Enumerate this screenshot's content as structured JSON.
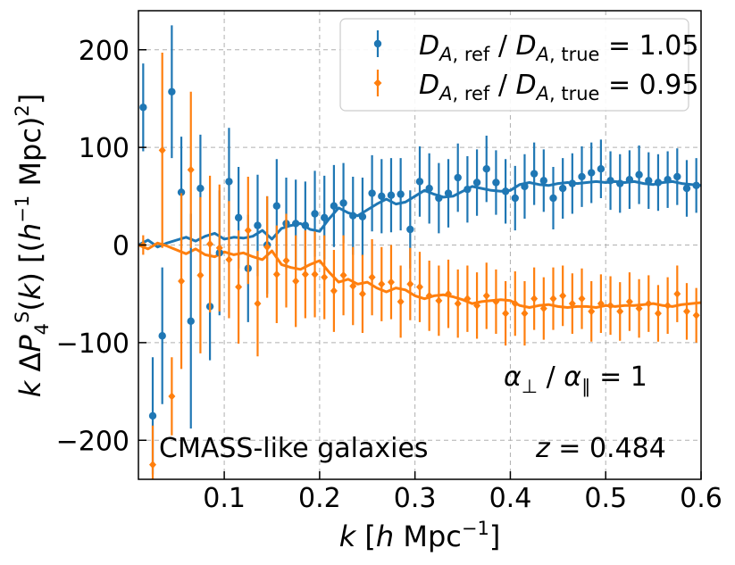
{
  "chart_data": {
    "type": "scatter",
    "xlabel": "k [h Mpc^-1]",
    "ylabel": "k ΔP4S(k) [(h^-1 Mpc)^2]",
    "xlim": [
      0.01,
      0.6
    ],
    "ylim": [
      -240,
      240
    ],
    "xticks": [
      0.1,
      0.2,
      0.3,
      0.4,
      0.5,
      0.6
    ],
    "yticks": [
      -200,
      -100,
      0,
      100,
      200
    ],
    "grid": true,
    "legend_position": "top-right",
    "series": [
      {
        "name": "D_A,ref / D_A,true = 1.05",
        "color": "#1f77b4",
        "marker": "circle",
        "points": [
          {
            "x": 0.015,
            "y": 141,
            "err": 45
          },
          {
            "x": 0.025,
            "y": -175,
            "err": 60
          },
          {
            "x": 0.035,
            "y": -93,
            "err": 70
          },
          {
            "x": 0.045,
            "y": 157,
            "err": 68
          },
          {
            "x": 0.055,
            "y": 54,
            "err": 57
          },
          {
            "x": 0.065,
            "y": -78,
            "err": 110
          },
          {
            "x": 0.075,
            "y": 58,
            "err": 55
          },
          {
            "x": 0.085,
            "y": -63,
            "err": 55
          },
          {
            "x": 0.095,
            "y": -8,
            "err": 64
          },
          {
            "x": 0.105,
            "y": 65,
            "err": 55
          },
          {
            "x": 0.115,
            "y": 28,
            "err": 52
          },
          {
            "x": 0.125,
            "y": -24,
            "err": 55
          },
          {
            "x": 0.135,
            "y": 20,
            "err": 52
          },
          {
            "x": 0.145,
            "y": 0,
            "err": 50
          },
          {
            "x": 0.155,
            "y": 40,
            "err": 48
          },
          {
            "x": 0.165,
            "y": 22,
            "err": 47
          },
          {
            "x": 0.175,
            "y": 22,
            "err": 45
          },
          {
            "x": 0.185,
            "y": 20,
            "err": 45
          },
          {
            "x": 0.195,
            "y": 32,
            "err": 44
          },
          {
            "x": 0.205,
            "y": 28,
            "err": 43
          },
          {
            "x": 0.215,
            "y": 40,
            "err": 42
          },
          {
            "x": 0.225,
            "y": 43,
            "err": 41
          },
          {
            "x": 0.235,
            "y": 30,
            "err": 40
          },
          {
            "x": 0.245,
            "y": 29,
            "err": 40
          },
          {
            "x": 0.255,
            "y": 53,
            "err": 39
          },
          {
            "x": 0.265,
            "y": 50,
            "err": 38
          },
          {
            "x": 0.275,
            "y": 51,
            "err": 38
          },
          {
            "x": 0.285,
            "y": 52,
            "err": 37
          },
          {
            "x": 0.295,
            "y": 16,
            "err": 40
          },
          {
            "x": 0.305,
            "y": 65,
            "err": 36
          },
          {
            "x": 0.315,
            "y": 58,
            "err": 36
          },
          {
            "x": 0.325,
            "y": 48,
            "err": 36
          },
          {
            "x": 0.335,
            "y": 53,
            "err": 35
          },
          {
            "x": 0.345,
            "y": 69,
            "err": 35
          },
          {
            "x": 0.355,
            "y": 57,
            "err": 34
          },
          {
            "x": 0.365,
            "y": 64,
            "err": 34
          },
          {
            "x": 0.375,
            "y": 78,
            "err": 34
          },
          {
            "x": 0.385,
            "y": 64,
            "err": 33
          },
          {
            "x": 0.395,
            "y": 55,
            "err": 33
          },
          {
            "x": 0.405,
            "y": 48,
            "err": 33
          },
          {
            "x": 0.415,
            "y": 60,
            "err": 33
          },
          {
            "x": 0.425,
            "y": 73,
            "err": 32
          },
          {
            "x": 0.435,
            "y": 66,
            "err": 32
          },
          {
            "x": 0.445,
            "y": 48,
            "err": 32
          },
          {
            "x": 0.455,
            "y": 58,
            "err": 31
          },
          {
            "x": 0.465,
            "y": 63,
            "err": 31
          },
          {
            "x": 0.475,
            "y": 70,
            "err": 31
          },
          {
            "x": 0.485,
            "y": 74,
            "err": 31
          },
          {
            "x": 0.495,
            "y": 78,
            "err": 30
          },
          {
            "x": 0.505,
            "y": 66,
            "err": 30
          },
          {
            "x": 0.515,
            "y": 63,
            "err": 30
          },
          {
            "x": 0.525,
            "y": 67,
            "err": 30
          },
          {
            "x": 0.535,
            "y": 72,
            "err": 30
          },
          {
            "x": 0.545,
            "y": 66,
            "err": 29
          },
          {
            "x": 0.555,
            "y": 64,
            "err": 29
          },
          {
            "x": 0.565,
            "y": 67,
            "err": 29
          },
          {
            "x": 0.575,
            "y": 70,
            "err": 29
          },
          {
            "x": 0.585,
            "y": 58,
            "err": 29
          },
          {
            "x": 0.595,
            "y": 61,
            "err": 28
          }
        ],
        "model_curve": {
          "x": [
            0.01,
            0.02,
            0.03,
            0.04,
            0.05,
            0.06,
            0.07,
            0.08,
            0.09,
            0.1,
            0.11,
            0.12,
            0.13,
            0.14,
            0.15,
            0.16,
            0.17,
            0.18,
            0.19,
            0.2,
            0.21,
            0.22,
            0.23,
            0.24,
            0.25,
            0.26,
            0.27,
            0.28,
            0.29,
            0.3,
            0.31,
            0.32,
            0.33,
            0.34,
            0.35,
            0.36,
            0.37,
            0.38,
            0.39,
            0.4,
            0.41,
            0.42,
            0.43,
            0.44,
            0.45,
            0.46,
            0.47,
            0.48,
            0.49,
            0.5,
            0.51,
            0.52,
            0.53,
            0.54,
            0.55,
            0.56,
            0.57,
            0.58,
            0.59,
            0.6
          ],
          "y": [
            0,
            5,
            -2,
            2,
            5,
            8,
            4,
            9,
            12,
            6,
            8,
            7,
            9,
            15,
            6,
            17,
            20,
            22,
            16,
            14,
            27,
            38,
            33,
            30,
            36,
            42,
            47,
            42,
            44,
            50,
            56,
            52,
            49,
            50,
            55,
            60,
            58,
            56,
            55,
            56,
            62,
            64,
            62,
            61,
            63,
            64,
            63,
            64,
            65,
            64,
            65,
            64,
            65,
            63,
            62,
            64,
            65,
            63,
            62,
            61
          ]
        }
      },
      {
        "name": "D_A,ref / D_A,true = 0.95",
        "color": "#ff7f0e",
        "marker": "diamond",
        "points": [
          {
            "x": 0.015,
            "y": 0,
            "err": 10
          },
          {
            "x": 0.025,
            "y": -225,
            "err": 40
          },
          {
            "x": 0.035,
            "y": 97,
            "err": 100
          },
          {
            "x": 0.045,
            "y": -155,
            "err": 40
          },
          {
            "x": 0.055,
            "y": -37,
            "err": 90
          },
          {
            "x": 0.065,
            "y": 77,
            "err": 80
          },
          {
            "x": 0.075,
            "y": -31,
            "err": 80
          },
          {
            "x": 0.085,
            "y": 1,
            "err": 70
          },
          {
            "x": 0.095,
            "y": -3,
            "err": 65
          },
          {
            "x": 0.105,
            "y": -15,
            "err": 60
          },
          {
            "x": 0.115,
            "y": -43,
            "err": 58
          },
          {
            "x": 0.125,
            "y": 15,
            "err": 55
          },
          {
            "x": 0.135,
            "y": -60,
            "err": 54
          },
          {
            "x": 0.145,
            "y": -2,
            "err": 52
          },
          {
            "x": 0.155,
            "y": -30,
            "err": 50
          },
          {
            "x": 0.165,
            "y": -16,
            "err": 48
          },
          {
            "x": 0.175,
            "y": -37,
            "err": 47
          },
          {
            "x": 0.185,
            "y": -30,
            "err": 45
          },
          {
            "x": 0.195,
            "y": -30,
            "err": 44
          },
          {
            "x": 0.205,
            "y": -33,
            "err": 43
          },
          {
            "x": 0.215,
            "y": -47,
            "err": 42
          },
          {
            "x": 0.225,
            "y": -31,
            "err": 41
          },
          {
            "x": 0.235,
            "y": -42,
            "err": 40
          },
          {
            "x": 0.245,
            "y": -50,
            "err": 40
          },
          {
            "x": 0.255,
            "y": -33,
            "err": 39
          },
          {
            "x": 0.265,
            "y": -40,
            "err": 38
          },
          {
            "x": 0.275,
            "y": -38,
            "err": 38
          },
          {
            "x": 0.285,
            "y": -58,
            "err": 37
          },
          {
            "x": 0.295,
            "y": -40,
            "err": 37
          },
          {
            "x": 0.305,
            "y": -43,
            "err": 36
          },
          {
            "x": 0.315,
            "y": -52,
            "err": 36
          },
          {
            "x": 0.325,
            "y": -57,
            "err": 36
          },
          {
            "x": 0.335,
            "y": -50,
            "err": 35
          },
          {
            "x": 0.345,
            "y": -60,
            "err": 35
          },
          {
            "x": 0.355,
            "y": -55,
            "err": 34
          },
          {
            "x": 0.365,
            "y": -62,
            "err": 34
          },
          {
            "x": 0.375,
            "y": -52,
            "err": 34
          },
          {
            "x": 0.385,
            "y": -58,
            "err": 33
          },
          {
            "x": 0.395,
            "y": -70,
            "err": 33
          },
          {
            "x": 0.405,
            "y": -60,
            "err": 33
          },
          {
            "x": 0.415,
            "y": -70,
            "err": 33
          },
          {
            "x": 0.425,
            "y": -55,
            "err": 32
          },
          {
            "x": 0.435,
            "y": -65,
            "err": 32
          },
          {
            "x": 0.445,
            "y": -55,
            "err": 32
          },
          {
            "x": 0.455,
            "y": -52,
            "err": 31
          },
          {
            "x": 0.465,
            "y": -60,
            "err": 31
          },
          {
            "x": 0.475,
            "y": -55,
            "err": 31
          },
          {
            "x": 0.485,
            "y": -68,
            "err": 31
          },
          {
            "x": 0.495,
            "y": -60,
            "err": 30
          },
          {
            "x": 0.505,
            "y": -62,
            "err": 30
          },
          {
            "x": 0.515,
            "y": -68,
            "err": 30
          },
          {
            "x": 0.525,
            "y": -58,
            "err": 30
          },
          {
            "x": 0.535,
            "y": -65,
            "err": 30
          },
          {
            "x": 0.545,
            "y": -60,
            "err": 29
          },
          {
            "x": 0.555,
            "y": -70,
            "err": 29
          },
          {
            "x": 0.565,
            "y": -62,
            "err": 29
          },
          {
            "x": 0.575,
            "y": -50,
            "err": 29
          },
          {
            "x": 0.585,
            "y": -68,
            "err": 29
          },
          {
            "x": 0.595,
            "y": -72,
            "err": 28
          }
        ],
        "model_curve": {
          "x": [
            0.01,
            0.02,
            0.03,
            0.04,
            0.05,
            0.06,
            0.07,
            0.08,
            0.09,
            0.1,
            0.11,
            0.12,
            0.13,
            0.14,
            0.15,
            0.16,
            0.17,
            0.18,
            0.19,
            0.2,
            0.21,
            0.22,
            0.23,
            0.24,
            0.25,
            0.26,
            0.27,
            0.28,
            0.29,
            0.3,
            0.31,
            0.32,
            0.33,
            0.34,
            0.35,
            0.36,
            0.37,
            0.38,
            0.39,
            0.4,
            0.41,
            0.42,
            0.43,
            0.44,
            0.45,
            0.46,
            0.47,
            0.48,
            0.49,
            0.5,
            0.51,
            0.52,
            0.53,
            0.54,
            0.55,
            0.56,
            0.57,
            0.58,
            0.59,
            0.6
          ],
          "y": [
            0,
            -4,
            2,
            -1,
            -5,
            -9,
            -4,
            -10,
            -12,
            -7,
            -10,
            -8,
            -12,
            -15,
            -6,
            -20,
            -23,
            -25,
            -20,
            -16,
            -28,
            -38,
            -35,
            -40,
            -38,
            -44,
            -48,
            -44,
            -46,
            -52,
            -55,
            -52,
            -51,
            -53,
            -56,
            -60,
            -58,
            -57,
            -56,
            -57,
            -62,
            -64,
            -62,
            -61,
            -63,
            -64,
            -63,
            -63,
            -64,
            -62,
            -63,
            -62,
            -62,
            -61,
            -60,
            -62,
            -63,
            -61,
            -60,
            -59
          ]
        }
      }
    ],
    "annotations": {
      "alpha_ratio": "α⊥ / α∥ = 1",
      "sample": "CMASS-like galaxies",
      "redshift": "z = 0.484"
    }
  }
}
